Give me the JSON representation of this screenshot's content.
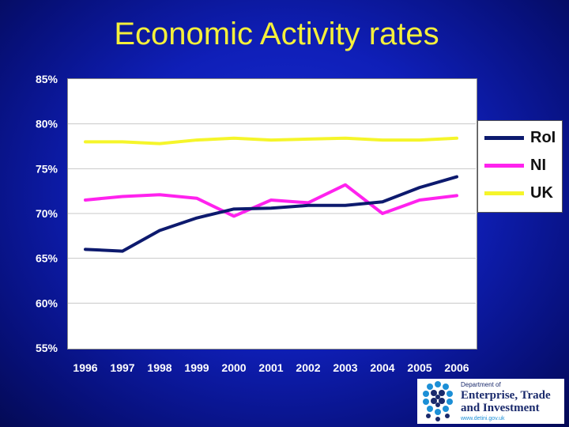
{
  "chart_data": {
    "type": "line",
    "title": "Economic Activity rates",
    "categories": [
      "1996",
      "1997",
      "1998",
      "1999",
      "2000",
      "2001",
      "2002",
      "2003",
      "2004",
      "2005",
      "2006"
    ],
    "y_ticks": [
      "85%",
      "80%",
      "75%",
      "70%",
      "65%",
      "60%",
      "55%"
    ],
    "ylim": [
      55,
      85
    ],
    "grid": true,
    "legend_position": "right",
    "series": [
      {
        "name": "RoI",
        "color": "#0d1a6e",
        "values": [
          66.0,
          65.8,
          68.1,
          69.5,
          70.5,
          70.6,
          70.9,
          70.9,
          71.3,
          72.9,
          74.1
        ]
      },
      {
        "name": "NI",
        "color": "#ff22ee",
        "values": [
          71.5,
          71.9,
          72.1,
          71.7,
          69.7,
          71.5,
          71.2,
          73.2,
          70.0,
          71.5,
          72.0
        ]
      },
      {
        "name": "UK",
        "color": "#f5f52a",
        "values": [
          78.0,
          78.0,
          77.8,
          78.2,
          78.4,
          78.2,
          78.3,
          78.4,
          78.2,
          78.2,
          78.4
        ]
      }
    ]
  },
  "logo": {
    "line1": "Department of",
    "line2": "Enterprise, Trade",
    "line3": "and Investment",
    "url": "www.detini.gov.uk"
  }
}
